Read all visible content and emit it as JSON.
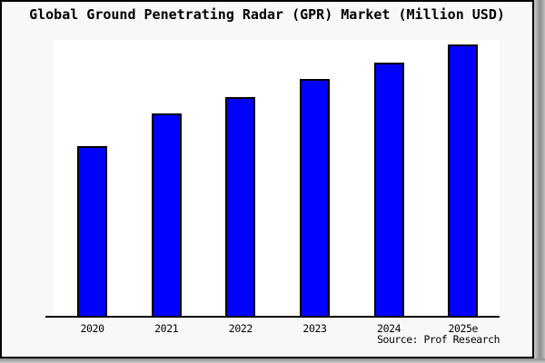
{
  "title": "Global Ground Penetrating Radar (GPR) Market (Million USD)",
  "source_credit": "Source: Prof Research",
  "colors": {
    "bar_fill": "#0000ff",
    "bar_border": "#000000",
    "panel_background": "#f8f8f8",
    "plot_background": "#ffffff",
    "axis_line": "#000000",
    "frame_border": "#000000",
    "shadow_gray": "#8f8f8f"
  },
  "chart_data": {
    "type": "bar",
    "title": "Global Ground Penetrating Radar (GPR) Market (Million USD)",
    "categories": [
      "2020",
      "2021",
      "2022",
      "2023",
      "2024",
      "2025e"
    ],
    "values": [
      189,
      225,
      243,
      263,
      281,
      301
    ],
    "xlabel": "",
    "ylabel": "",
    "ylim": [
      0,
      306
    ],
    "grid": false,
    "legend": false,
    "y_axis_visible": false,
    "annotations": [
      "Source: Prof Research"
    ]
  }
}
